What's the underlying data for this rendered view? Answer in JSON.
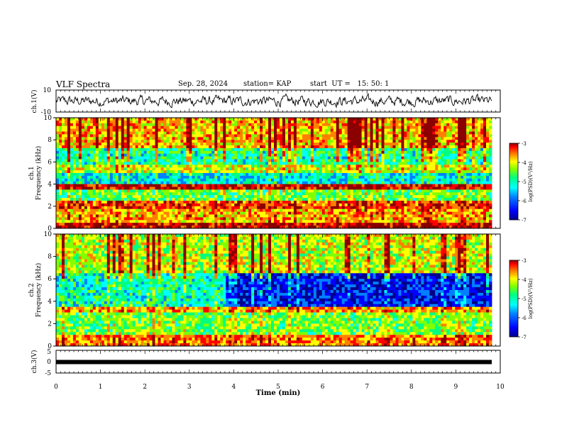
{
  "header": {
    "title": "VLF Spectra",
    "date": "Sep. 28, 2024",
    "station": "station= KAP",
    "start": "start  UT =   15: 50: 1"
  },
  "colors": {
    "colormap": [
      "#00008b",
      "#0000ff",
      "#0080ff",
      "#00ffff",
      "#00ff80",
      "#80ff00",
      "#ffff00",
      "#ff8000",
      "#ff0000",
      "#8b0000"
    ],
    "trace": "#000000",
    "frame": "#000000"
  },
  "chart_data": [
    {
      "type": "line",
      "panel": "ch1-waveform",
      "ylabel": "ch.1(V)",
      "ylim": [
        -10,
        10
      ],
      "yticks": [
        "10",
        "-10"
      ],
      "xlim": [
        0,
        10
      ],
      "description_series": "broadband waveform fluctuating around 0 V"
    },
    {
      "type": "heatmap",
      "panel": "ch1-spectrogram",
      "ylabel_top": "ch.1",
      "ylabel": "Frequency (kHz)",
      "ylim": [
        0,
        10
      ],
      "yticks": [
        "0",
        "2",
        "4",
        "6",
        "8",
        "10"
      ],
      "xlim": [
        0,
        10
      ],
      "colorbar": {
        "label": "log(PSD)(V²/Hz)",
        "range": [
          -7,
          -3
        ],
        "ticks": [
          "-3",
          "-4",
          "-5",
          "-6",
          "-7"
        ]
      },
      "bands": [
        {
          "from": 0.0,
          "to": 0.6,
          "level": -3.4
        },
        {
          "from": 0.6,
          "to": 1.7,
          "level": -4.2
        },
        {
          "from": 1.7,
          "to": 2.5,
          "level": -3.8
        },
        {
          "from": 2.5,
          "to": 3.4,
          "level": -5.0
        },
        {
          "from": 3.4,
          "to": 4.0,
          "level": -3.5
        },
        {
          "from": 4.0,
          "to": 5.0,
          "level": -5.6
        },
        {
          "from": 5.0,
          "to": 5.7,
          "level": -4.6
        },
        {
          "from": 5.7,
          "to": 7.2,
          "level": -5.3
        },
        {
          "from": 7.2,
          "to": 10.0,
          "level": -4.2
        }
      ]
    },
    {
      "type": "heatmap",
      "panel": "ch2-spectrogram",
      "ylabel_top": "ch.2",
      "ylabel": "Frequency (kHz)",
      "ylim": [
        0,
        10
      ],
      "yticks": [
        "0",
        "2",
        "4",
        "6",
        "8",
        "10"
      ],
      "xlim": [
        0,
        10
      ],
      "colorbar": {
        "label": "log(PSD)(V²/Hz)",
        "range": [
          -7,
          -3
        ],
        "ticks": [
          "-3",
          "-4",
          "-5",
          "-6",
          "-7"
        ]
      },
      "bands": [
        {
          "from": 0.0,
          "to": 1.0,
          "level": -4.0
        },
        {
          "from": 1.0,
          "to": 3.0,
          "level": -4.9
        },
        {
          "from": 3.0,
          "to": 3.6,
          "level": -4.1
        },
        {
          "from": 3.6,
          "to": 6.5,
          "level": -5.4,
          "late_level": -6.4,
          "change_at": 3.9
        },
        {
          "from": 6.5,
          "to": 10.0,
          "level": -4.6
        }
      ]
    },
    {
      "type": "line",
      "panel": "ch3-waveform",
      "ylabel": "ch.3(V)",
      "ylim": [
        -5,
        5
      ],
      "yticks": [
        "5",
        "0",
        "-5"
      ],
      "xlim": [
        0,
        10
      ],
      "xlabel": "Time  (min)",
      "xticks": [
        "0",
        "1",
        "2",
        "3",
        "4",
        "5",
        "6",
        "7",
        "8",
        "9",
        "10"
      ],
      "level": 0
    }
  ]
}
